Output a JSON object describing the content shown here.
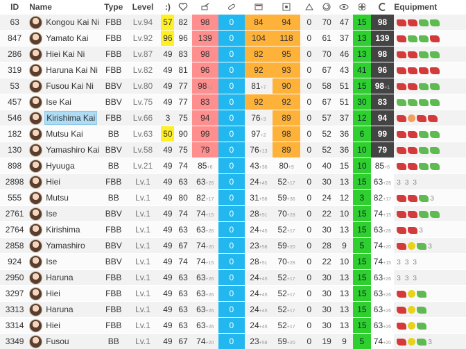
{
  "headers": {
    "id": "ID",
    "name": "Name",
    "type": "Type",
    "level": "Level",
    "morale": ":)",
    "equipment": "Equipment",
    "icons": [
      "heart-icon",
      "firepower-icon",
      "torpedo-icon",
      "armor-icon",
      "antiair-icon",
      "evasion-icon",
      "asw-icon",
      "los-icon",
      "luck-icon",
      "range-icon"
    ]
  },
  "rows": [
    {
      "id": "63",
      "name": "Kongou Kai Ni",
      "type": "FBB",
      "level": "Lv.94",
      "morale": "57",
      "morale_yellow": true,
      "hp": "82",
      "fp": "98",
      "fp_sub": "",
      "fuel": "0",
      "ammo": "84",
      "ammo_sub": "",
      "acc": "94",
      "acc_sub": "",
      "a": "0",
      "b": "70",
      "c": "47",
      "cond": "15",
      "lvl": "98",
      "lvl_sub": "",
      "equip": [
        {
          "c": "red",
          "n": ""
        },
        {
          "c": "red",
          "n": ""
        },
        {
          "c": "green",
          "n": ""
        },
        {
          "c": "green",
          "n": ""
        }
      ]
    },
    {
      "id": "847",
      "name": "Yamato Kai",
      "type": "FBB",
      "level": "Lv.92",
      "morale": "96",
      "morale_yellow": true,
      "hp": "96",
      "fp": "139",
      "fp_sub": "",
      "fuel": "0",
      "ammo": "104",
      "ammo_sub": "",
      "acc": "118",
      "acc_sub": "",
      "a": "0",
      "b": "61",
      "c": "37",
      "cond": "13",
      "lvl": "139",
      "lvl_sub": "",
      "equip": [
        {
          "c": "red",
          "n": ""
        },
        {
          "c": "green",
          "n": ""
        },
        {
          "c": "green",
          "n": ""
        },
        {
          "c": "red",
          "n": ""
        }
      ]
    },
    {
      "id": "286",
      "name": "Hiei Kai Ni",
      "type": "FBB",
      "level": "Lv.87",
      "morale": "49",
      "morale_yellow": false,
      "hp": "83",
      "fp": "98",
      "fp_sub": "",
      "fuel": "0",
      "ammo": "82",
      "ammo_sub": "",
      "acc": "95",
      "acc_sub": "",
      "a": "0",
      "b": "70",
      "c": "46",
      "cond": "13",
      "lvl": "98",
      "lvl_sub": "",
      "equip": [
        {
          "c": "red",
          "n": ""
        },
        {
          "c": "red",
          "n": ""
        },
        {
          "c": "green",
          "n": ""
        },
        {
          "c": "green",
          "n": ""
        }
      ]
    },
    {
      "id": "319",
      "name": "Haruna Kai Ni",
      "type": "FBB",
      "level": "Lv.82",
      "morale": "49",
      "morale_yellow": false,
      "hp": "81",
      "fp": "96",
      "fp_sub": "",
      "fuel": "0",
      "ammo": "92",
      "ammo_sub": "",
      "acc": "93",
      "acc_sub": "",
      "a": "0",
      "b": "67",
      "c": "43",
      "cond": "41",
      "lvl": "96",
      "lvl_sub": "",
      "equip": [
        {
          "c": "red",
          "n": ""
        },
        {
          "c": "red",
          "n": ""
        },
        {
          "c": "red",
          "n": ""
        },
        {
          "c": "red",
          "n": ""
        }
      ]
    },
    {
      "id": "53",
      "name": "Fusou Kai Ni",
      "type": "BBV",
      "level": "Lv.80",
      "morale": "49",
      "morale_yellow": false,
      "hp": "77",
      "fp": "98",
      "fp_sub": "+1",
      "fuel": "0",
      "ammo": "81",
      "ammo_sub": "+7",
      "acc": "90",
      "acc_sub": "",
      "a": "0",
      "b": "58",
      "c": "51",
      "cond": "15",
      "lvl": "98",
      "lvl_sub": "+1",
      "equip": [
        {
          "c": "red",
          "n": ""
        },
        {
          "c": "red",
          "n": ""
        },
        {
          "c": "green",
          "n": ""
        },
        {
          "c": "green",
          "n": ""
        }
      ]
    },
    {
      "id": "457",
      "name": "Ise Kai",
      "type": "BBV",
      "level": "Lv.75",
      "morale": "49",
      "morale_yellow": false,
      "hp": "77",
      "fp": "83",
      "fp_sub": "",
      "fuel": "0",
      "ammo": "92",
      "ammo_sub": "",
      "acc": "92",
      "acc_sub": "",
      "a": "0",
      "b": "67",
      "c": "51",
      "cond": "30",
      "lvl": "83",
      "lvl_sub": "",
      "equip": [
        {
          "c": "green",
          "n": ""
        },
        {
          "c": "green",
          "n": ""
        },
        {
          "c": "green",
          "n": ""
        },
        {
          "c": "green",
          "n": ""
        }
      ]
    },
    {
      "id": "546",
      "name": "Kirishima Kai",
      "type": "FBB",
      "level": "Lv.66",
      "morale": "3",
      "morale_yellow": false,
      "hp": "75",
      "fp": "94",
      "fp_sub": "",
      "fuel": "0",
      "ammo": "76",
      "ammo_sub": "+3",
      "acc": "89",
      "acc_sub": "",
      "a": "0",
      "b": "57",
      "c": "37",
      "cond": "12",
      "lvl": "94",
      "lvl_sub": "",
      "equip": [
        {
          "c": "red",
          "n": ""
        },
        {
          "c": "orange",
          "n": ""
        },
        {
          "c": "red",
          "n": ""
        },
        {
          "c": "red",
          "n": ""
        }
      ]
    },
    {
      "id": "182",
      "name": "Mutsu Kai",
      "type": "BB",
      "level": "Lv.63",
      "morale": "50",
      "morale_yellow": true,
      "hp": "90",
      "fp": "99",
      "fp_sub": "",
      "fuel": "0",
      "ammo": "97",
      "ammo_sub": "+2",
      "acc": "98",
      "acc_sub": "",
      "a": "0",
      "b": "52",
      "c": "36",
      "cond": "6",
      "lvl": "99",
      "lvl_sub": "",
      "equip": [
        {
          "c": "red",
          "n": ""
        },
        {
          "c": "red",
          "n": ""
        },
        {
          "c": "green",
          "n": ""
        },
        {
          "c": "green",
          "n": ""
        }
      ]
    },
    {
      "id": "130",
      "name": "Yamashiro Kai",
      "type": "BBV",
      "level": "Lv.58",
      "morale": "49",
      "morale_yellow": false,
      "hp": "75",
      "fp": "79",
      "fp_sub": "",
      "fuel": "0",
      "ammo": "76",
      "ammo_sub": "+13",
      "acc": "89",
      "acc_sub": "",
      "a": "0",
      "b": "52",
      "c": "36",
      "cond": "10",
      "lvl": "79",
      "lvl_sub": "",
      "equip": [
        {
          "c": "red",
          "n": ""
        },
        {
          "c": "red",
          "n": ""
        },
        {
          "c": "green",
          "n": ""
        },
        {
          "c": "green",
          "n": ""
        }
      ]
    },
    {
      "id": "898",
      "name": "Hyuuga",
      "type": "BB",
      "level": "Lv.21",
      "morale": "49",
      "morale_yellow": false,
      "hp": "74",
      "fp": "85",
      "fp_sub": "+6",
      "fuel": "0",
      "ammo": "43",
      "ammo_sub": "+36",
      "acc": "80",
      "acc_sub": "+9",
      "a": "0",
      "b": "40",
      "c": "15",
      "cond": "10",
      "lvl": "85",
      "lvl_sub": "+6",
      "equip": [
        {
          "c": "red",
          "n": ""
        },
        {
          "c": "red",
          "n": ""
        },
        {
          "c": "green",
          "n": ""
        },
        {
          "c": "green",
          "n": ""
        }
      ]
    },
    {
      "id": "2898",
      "name": "Hiei",
      "type": "FBB",
      "level": "Lv.1",
      "morale": "49",
      "morale_yellow": false,
      "hp": "63",
      "fp": "63",
      "fp_sub": "+26",
      "fuel": "0",
      "ammo": "24",
      "ammo_sub": "+45",
      "acc": "52",
      "acc_sub": "+17",
      "a": "0",
      "b": "30",
      "c": "13",
      "cond": "15",
      "lvl": "63",
      "lvl_sub": "+26",
      "equip": [
        {
          "c": "",
          "n": "3"
        },
        {
          "c": "",
          "n": "3"
        },
        {
          "c": "",
          "n": "3"
        }
      ]
    },
    {
      "id": "555",
      "name": "Mutsu",
      "type": "BB",
      "level": "Lv.1",
      "morale": "49",
      "morale_yellow": false,
      "hp": "80",
      "fp": "82",
      "fp_sub": "+17",
      "fuel": "0",
      "ammo": "31",
      "ammo_sub": "+58",
      "acc": "59",
      "acc_sub": "+36",
      "a": "0",
      "b": "24",
      "c": "12",
      "cond": "3",
      "lvl": "82",
      "lvl_sub": "+17",
      "equip": [
        {
          "c": "red",
          "n": ""
        },
        {
          "c": "red",
          "n": ""
        },
        {
          "c": "green",
          "n": ""
        },
        {
          "c": "",
          "n": "3"
        }
      ]
    },
    {
      "id": "2761",
      "name": "Ise",
      "type": "BBV",
      "level": "Lv.1",
      "morale": "49",
      "morale_yellow": false,
      "hp": "74",
      "fp": "74",
      "fp_sub": "+15",
      "fuel": "0",
      "ammo": "28",
      "ammo_sub": "+51",
      "acc": "70",
      "acc_sub": "+28",
      "a": "0",
      "b": "22",
      "c": "10",
      "cond": "15",
      "lvl": "74",
      "lvl_sub": "+15",
      "equip": [
        {
          "c": "red",
          "n": ""
        },
        {
          "c": "red",
          "n": ""
        },
        {
          "c": "green",
          "n": ""
        },
        {
          "c": "green",
          "n": ""
        }
      ]
    },
    {
      "id": "2764",
      "name": "Kirishima",
      "type": "FBB",
      "level": "Lv.1",
      "morale": "49",
      "morale_yellow": false,
      "hp": "63",
      "fp": "63",
      "fp_sub": "+26",
      "fuel": "0",
      "ammo": "24",
      "ammo_sub": "+45",
      "acc": "52",
      "acc_sub": "+17",
      "a": "0",
      "b": "30",
      "c": "13",
      "cond": "15",
      "lvl": "63",
      "lvl_sub": "+26",
      "equip": [
        {
          "c": "red",
          "n": ""
        },
        {
          "c": "red",
          "n": ""
        },
        {
          "c": "",
          "n": "3"
        }
      ]
    },
    {
      "id": "2858",
      "name": "Yamashiro",
      "type": "BBV",
      "level": "Lv.1",
      "morale": "49",
      "morale_yellow": false,
      "hp": "67",
      "fp": "74",
      "fp_sub": "+20",
      "fuel": "0",
      "ammo": "23",
      "ammo_sub": "+58",
      "acc": "59",
      "acc_sub": "+20",
      "a": "0",
      "b": "28",
      "c": "9",
      "cond": "5",
      "lvl": "74",
      "lvl_sub": "+20",
      "equip": [
        {
          "c": "red",
          "n": ""
        },
        {
          "c": "yellow",
          "n": ""
        },
        {
          "c": "green",
          "n": ""
        },
        {
          "c": "",
          "n": "3"
        }
      ]
    },
    {
      "id": "924",
      "name": "Ise",
      "type": "BBV",
      "level": "Lv.1",
      "morale": "49",
      "morale_yellow": false,
      "hp": "74",
      "fp": "74",
      "fp_sub": "+15",
      "fuel": "0",
      "ammo": "28",
      "ammo_sub": "+51",
      "acc": "70",
      "acc_sub": "+28",
      "a": "0",
      "b": "22",
      "c": "10",
      "cond": "15",
      "lvl": "74",
      "lvl_sub": "+15",
      "equip": [
        {
          "c": "",
          "n": "3"
        },
        {
          "c": "",
          "n": "3"
        },
        {
          "c": "",
          "n": "3"
        }
      ]
    },
    {
      "id": "2950",
      "name": "Haruna",
      "type": "FBB",
      "level": "Lv.1",
      "morale": "49",
      "morale_yellow": false,
      "hp": "63",
      "fp": "63",
      "fp_sub": "+26",
      "fuel": "0",
      "ammo": "24",
      "ammo_sub": "+45",
      "acc": "52",
      "acc_sub": "+17",
      "a": "0",
      "b": "30",
      "c": "13",
      "cond": "15",
      "lvl": "63",
      "lvl_sub": "+26",
      "equip": [
        {
          "c": "",
          "n": "3"
        },
        {
          "c": "",
          "n": "3"
        },
        {
          "c": "",
          "n": "3"
        }
      ]
    },
    {
      "id": "3297",
      "name": "Hiei",
      "type": "FBB",
      "level": "Lv.1",
      "morale": "49",
      "morale_yellow": false,
      "hp": "63",
      "fp": "63",
      "fp_sub": "+26",
      "fuel": "0",
      "ammo": "24",
      "ammo_sub": "+45",
      "acc": "52",
      "acc_sub": "+17",
      "a": "0",
      "b": "30",
      "c": "13",
      "cond": "15",
      "lvl": "63",
      "lvl_sub": "+26",
      "equip": [
        {
          "c": "red",
          "n": ""
        },
        {
          "c": "yellow",
          "n": ""
        },
        {
          "c": "green",
          "n": ""
        }
      ]
    },
    {
      "id": "3313",
      "name": "Haruna",
      "type": "FBB",
      "level": "Lv.1",
      "morale": "49",
      "morale_yellow": false,
      "hp": "63",
      "fp": "63",
      "fp_sub": "+26",
      "fuel": "0",
      "ammo": "24",
      "ammo_sub": "+45",
      "acc": "52",
      "acc_sub": "+17",
      "a": "0",
      "b": "30",
      "c": "13",
      "cond": "15",
      "lvl": "63",
      "lvl_sub": "+26",
      "equip": [
        {
          "c": "red",
          "n": ""
        },
        {
          "c": "yellow",
          "n": ""
        },
        {
          "c": "green",
          "n": ""
        }
      ]
    },
    {
      "id": "3314",
      "name": "Hiei",
      "type": "FBB",
      "level": "Lv.1",
      "morale": "49",
      "morale_yellow": false,
      "hp": "63",
      "fp": "63",
      "fp_sub": "+26",
      "fuel": "0",
      "ammo": "24",
      "ammo_sub": "+45",
      "acc": "52",
      "acc_sub": "+17",
      "a": "0",
      "b": "30",
      "c": "13",
      "cond": "15",
      "lvl": "63",
      "lvl_sub": "+26",
      "equip": [
        {
          "c": "red",
          "n": ""
        },
        {
          "c": "yellow",
          "n": ""
        },
        {
          "c": "green",
          "n": ""
        }
      ]
    },
    {
      "id": "3349",
      "name": "Fusou",
      "type": "BB",
      "level": "Lv.1",
      "morale": "49",
      "morale_yellow": false,
      "hp": "67",
      "fp": "74",
      "fp_sub": "+20",
      "fuel": "0",
      "ammo": "23",
      "ammo_sub": "+58",
      "acc": "59",
      "acc_sub": "+20",
      "a": "0",
      "b": "19",
      "c": "9",
      "cond": "5",
      "lvl": "74",
      "lvl_sub": "+20",
      "equip": [
        {
          "c": "red",
          "n": ""
        },
        {
          "c": "yellow",
          "n": ""
        },
        {
          "c": "green",
          "n": ""
        },
        {
          "c": "",
          "n": "3"
        }
      ]
    }
  ],
  "selected_row": 6,
  "colors": {
    "hp": "#ff8f8f",
    "fuel": "#22b8ef",
    "ammo": "#ffb23a",
    "cond": "#2fcf2f",
    "lvl": "#444444",
    "morale_high": "#ffef26",
    "selected": "#aedcf4"
  }
}
